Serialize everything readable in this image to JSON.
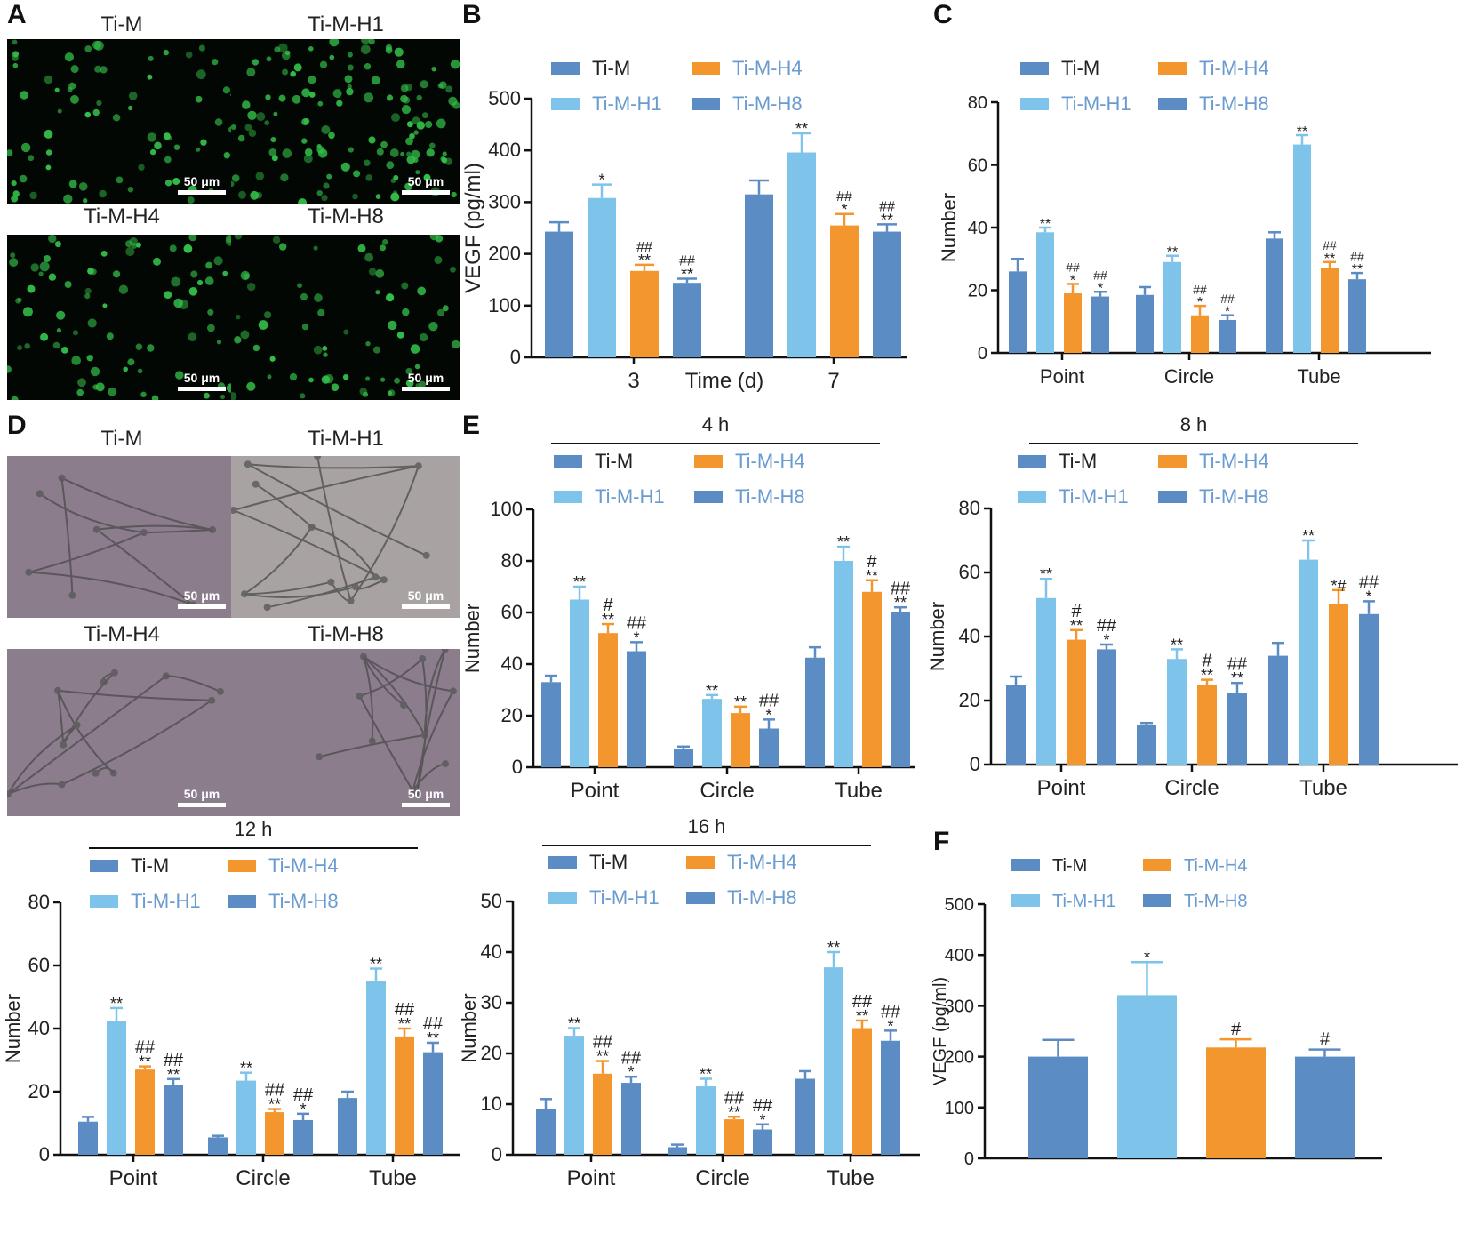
{
  "panel_letters": {
    "a": "A",
    "b": "B",
    "c": "C",
    "d": "D",
    "e": "E",
    "f": "F"
  },
  "scale_bar": "50 μm",
  "panel_a_titles": [
    "Ti-M",
    "Ti-M-H1",
    "Ti-M-H4",
    "Ti-M-H8"
  ],
  "panel_d_titles": [
    "Ti-M",
    "Ti-M-H1",
    "Ti-M-H4",
    "Ti-M-H8"
  ],
  "colors": {
    "ti_m": "#5b8cc4",
    "ti_m_h1": "#7ec4ea",
    "ti_m_h4": "#f3962e",
    "ti_m_h8": "#5b8cc4",
    "fluor_cell": "#33c04a",
    "axis": "#111111",
    "legend_h": "#6a9bd0"
  },
  "chart_data": [
    {
      "id": "B",
      "type": "bar",
      "title": "",
      "legend": [
        "Ti-M",
        "Ti-M-H1",
        "Ti-M-H4",
        "Ti-M-H8"
      ],
      "categories": [
        "3",
        "7"
      ],
      "xlabel": "Time (d)",
      "ylabel": "VEGF (pg/ml)",
      "ylim": [
        0,
        500
      ],
      "yticks": [
        0,
        100,
        200,
        300,
        400,
        500
      ],
      "series": [
        {
          "name": "Ti-M",
          "values": [
            243,
            315
          ],
          "errors": [
            18,
            27
          ],
          "annotations": [
            "",
            ""
          ]
        },
        {
          "name": "Ti-M-H1",
          "values": [
            308,
            396
          ],
          "errors": [
            26,
            37
          ],
          "annotations": [
            "*",
            "**"
          ]
        },
        {
          "name": "Ti-M-H4",
          "values": [
            167,
            255
          ],
          "errors": [
            12,
            22
          ],
          "annotations": [
            "##|**",
            "##|*"
          ]
        },
        {
          "name": "Ti-M-H8",
          "values": [
            144,
            243
          ],
          "errors": [
            8,
            14
          ],
          "annotations": [
            "##|**",
            "##|**"
          ]
        }
      ]
    },
    {
      "id": "C",
      "type": "bar",
      "title": "",
      "legend": [
        "Ti-M",
        "Ti-M-H1",
        "Ti-M-H4",
        "Ti-M-H8"
      ],
      "categories": [
        "Point",
        "Circle",
        "Tube"
      ],
      "xlabel": "",
      "ylabel": "Number",
      "ylim": [
        0,
        80
      ],
      "yticks": [
        0,
        20,
        40,
        60,
        80
      ],
      "series": [
        {
          "name": "Ti-M",
          "values": [
            26,
            18.5,
            36.5
          ],
          "errors": [
            4,
            2.5,
            2
          ],
          "annotations": [
            "",
            "",
            ""
          ]
        },
        {
          "name": "Ti-M-H1",
          "values": [
            38.5,
            29,
            66.5
          ],
          "errors": [
            1.5,
            2,
            3
          ],
          "annotations": [
            "**",
            "**",
            "**"
          ]
        },
        {
          "name": "Ti-M-H4",
          "values": [
            19,
            12,
            27
          ],
          "errors": [
            3,
            3,
            2
          ],
          "annotations": [
            "##|*",
            "##|*",
            "##|**"
          ]
        },
        {
          "name": "Ti-M-H8",
          "values": [
            18,
            10.5,
            23.5
          ],
          "errors": [
            1.5,
            1.5,
            2
          ],
          "annotations": [
            "##|*",
            "##|*",
            "##|**"
          ]
        }
      ]
    },
    {
      "id": "E-4h",
      "type": "bar",
      "title": "4 h",
      "legend": [
        "Ti-M",
        "Ti-M-H1",
        "Ti-M-H4",
        "Ti-M-H8"
      ],
      "categories": [
        "Point",
        "Circle",
        "Tube"
      ],
      "xlabel": "",
      "ylabel": "Number",
      "ylim": [
        0,
        100
      ],
      "yticks": [
        0,
        20,
        40,
        60,
        80,
        100
      ],
      "series": [
        {
          "name": "Ti-M",
          "values": [
            33,
            7,
            42.5
          ],
          "errors": [
            2.5,
            1,
            4
          ],
          "annotations": [
            "",
            "",
            ""
          ]
        },
        {
          "name": "Ti-M-H1",
          "values": [
            65,
            26.5,
            80
          ],
          "errors": [
            5,
            1.5,
            5.5
          ],
          "annotations": [
            "**",
            "**",
            "**"
          ]
        },
        {
          "name": "Ti-M-H4",
          "values": [
            52,
            21,
            68
          ],
          "errors": [
            3.5,
            2.5,
            4.5
          ],
          "annotations": [
            "#|**",
            "**",
            "#|**"
          ]
        },
        {
          "name": "Ti-M-H8",
          "values": [
            45,
            15,
            60
          ],
          "errors": [
            3.5,
            3.5,
            2
          ],
          "annotations": [
            "##|*",
            "##|*",
            "##|**"
          ]
        }
      ]
    },
    {
      "id": "E-8h",
      "type": "bar",
      "title": "8 h",
      "legend": [
        "Ti-M",
        "Ti-M-H1",
        "Ti-M-H4",
        "Ti-M-H8"
      ],
      "categories": [
        "Point",
        "Circle",
        "Tube"
      ],
      "xlabel": "",
      "ylabel": "Number",
      "ylim": [
        0,
        80
      ],
      "yticks": [
        0,
        20,
        40,
        60,
        80
      ],
      "series": [
        {
          "name": "Ti-M",
          "values": [
            25,
            12.5,
            34
          ],
          "errors": [
            2.5,
            0.5,
            4
          ],
          "annotations": [
            "",
            "",
            ""
          ]
        },
        {
          "name": "Ti-M-H1",
          "values": [
            52,
            33,
            64
          ],
          "errors": [
            6,
            3,
            6
          ],
          "annotations": [
            "**",
            "**",
            "**"
          ]
        },
        {
          "name": "Ti-M-H4",
          "values": [
            39,
            25,
            50
          ],
          "errors": [
            3,
            1.5,
            4.5
          ],
          "annotations": [
            "#|**",
            "#|**",
            "*#"
          ]
        },
        {
          "name": "Ti-M-H8",
          "values": [
            36,
            22.5,
            47
          ],
          "errors": [
            1.5,
            3,
            4
          ],
          "annotations": [
            "##|*",
            "##|**",
            "##|*"
          ]
        }
      ]
    },
    {
      "id": "E-12h",
      "type": "bar",
      "title": "12 h",
      "legend": [
        "Ti-M",
        "Ti-M-H1",
        "Ti-M-H4",
        "Ti-M-H8"
      ],
      "categories": [
        "Point",
        "Circle",
        "Tube"
      ],
      "xlabel": "",
      "ylabel": "Number",
      "ylim": [
        0,
        80
      ],
      "yticks": [
        0,
        20,
        40,
        60,
        80
      ],
      "series": [
        {
          "name": "Ti-M",
          "values": [
            10.5,
            5.5,
            18
          ],
          "errors": [
            1.5,
            0.5,
            2
          ],
          "annotations": [
            "",
            "",
            ""
          ]
        },
        {
          "name": "Ti-M-H1",
          "values": [
            42.5,
            23.5,
            55
          ],
          "errors": [
            4,
            2.5,
            4
          ],
          "annotations": [
            "**",
            "**",
            "**"
          ]
        },
        {
          "name": "Ti-M-H4",
          "values": [
            27,
            13.5,
            37.5
          ],
          "errors": [
            1,
            1,
            2.5
          ],
          "annotations": [
            "##|**",
            "##|**",
            "##|**"
          ]
        },
        {
          "name": "Ti-M-H8",
          "values": [
            22,
            11,
            32.5
          ],
          "errors": [
            2,
            2,
            3
          ],
          "annotations": [
            "##|**",
            "##|*",
            "##|**"
          ]
        }
      ]
    },
    {
      "id": "E-16h",
      "type": "bar",
      "title": "16 h",
      "legend": [
        "Ti-M",
        "Ti-M-H1",
        "Ti-M-H4",
        "Ti-M-H8"
      ],
      "categories": [
        "Point",
        "Circle",
        "Tube"
      ],
      "xlabel": "",
      "ylabel": "Number",
      "ylim": [
        0,
        50
      ],
      "yticks": [
        0,
        10,
        20,
        30,
        40,
        50
      ],
      "series": [
        {
          "name": "Ti-M",
          "values": [
            9,
            1.5,
            15
          ],
          "errors": [
            2,
            0.5,
            1.5
          ],
          "annotations": [
            "",
            "",
            ""
          ]
        },
        {
          "name": "Ti-M-H1",
          "values": [
            23.5,
            13.5,
            37
          ],
          "errors": [
            1.5,
            1.5,
            3
          ],
          "annotations": [
            "**",
            "**",
            "**"
          ]
        },
        {
          "name": "Ti-M-H4",
          "values": [
            16,
            7,
            25
          ],
          "errors": [
            2.5,
            0.5,
            1.5
          ],
          "annotations": [
            "##|**",
            "##|**",
            "##|**"
          ]
        },
        {
          "name": "Ti-M-H8",
          "values": [
            14.2,
            5,
            22.5
          ],
          "errors": [
            1.2,
            1,
            2
          ],
          "annotations": [
            "##|*",
            "##|*",
            "##|*"
          ]
        }
      ]
    },
    {
      "id": "F",
      "type": "bar",
      "title": "",
      "legend": [
        "Ti-M",
        "Ti-M-H1",
        "Ti-M-H4",
        "Ti-M-H8"
      ],
      "categories": [
        "Ti-M",
        "Ti-M-H1",
        "Ti-M-H4",
        "Ti-M-H8"
      ],
      "xlabel": "",
      "ylabel": "VEGF (pg/ml)",
      "ylim": [
        0,
        500
      ],
      "yticks": [
        0,
        100,
        200,
        300,
        400,
        500
      ],
      "series": [
        {
          "name": "VEGF",
          "values": [
            200,
            321,
            218,
            200
          ],
          "errors": [
            33,
            65,
            16,
            14
          ],
          "annotations": [
            "",
            "*",
            "#",
            "#"
          ]
        }
      ]
    }
  ]
}
